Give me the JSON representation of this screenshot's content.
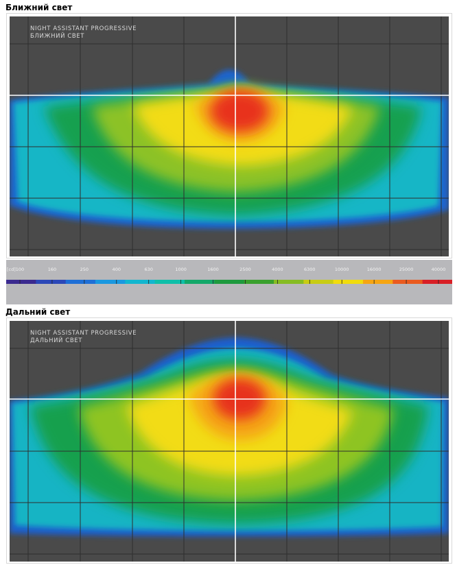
{
  "sections": {
    "low": {
      "heading": "Ближний свет",
      "plot_title": "NIGHT ASSISTANT PROGRESSIVE",
      "plot_subtitle": "БЛИЖНИЙ СВЕТ"
    },
    "high": {
      "heading": "Дальний свет",
      "plot_title": "NIGHT ASSISTANT PROGRESSIVE",
      "plot_subtitle": "ДАЛЬНИЙ СВЕТ"
    }
  },
  "scale": {
    "unit": "[cd]",
    "ticks": [
      "100",
      "160",
      "250",
      "400",
      "630",
      "1000",
      "1600",
      "2500",
      "4000",
      "6300",
      "10000",
      "16000",
      "25000",
      "40000"
    ],
    "colors": [
      "#3b2a8f",
      "#2c48b8",
      "#1f6fd6",
      "#1a98e0",
      "#12b6cf",
      "#0fbfa9",
      "#14a86a",
      "#1e9a3e",
      "#3aa02e",
      "#86bc23",
      "#c8cc14",
      "#f1dc0d",
      "#f6a512",
      "#ea5b1f",
      "#d81f26"
    ]
  },
  "colors": {
    "plot_background": "#4a4a4a",
    "grid": "#2d2d2d",
    "crosshair": "#ffffff"
  }
}
